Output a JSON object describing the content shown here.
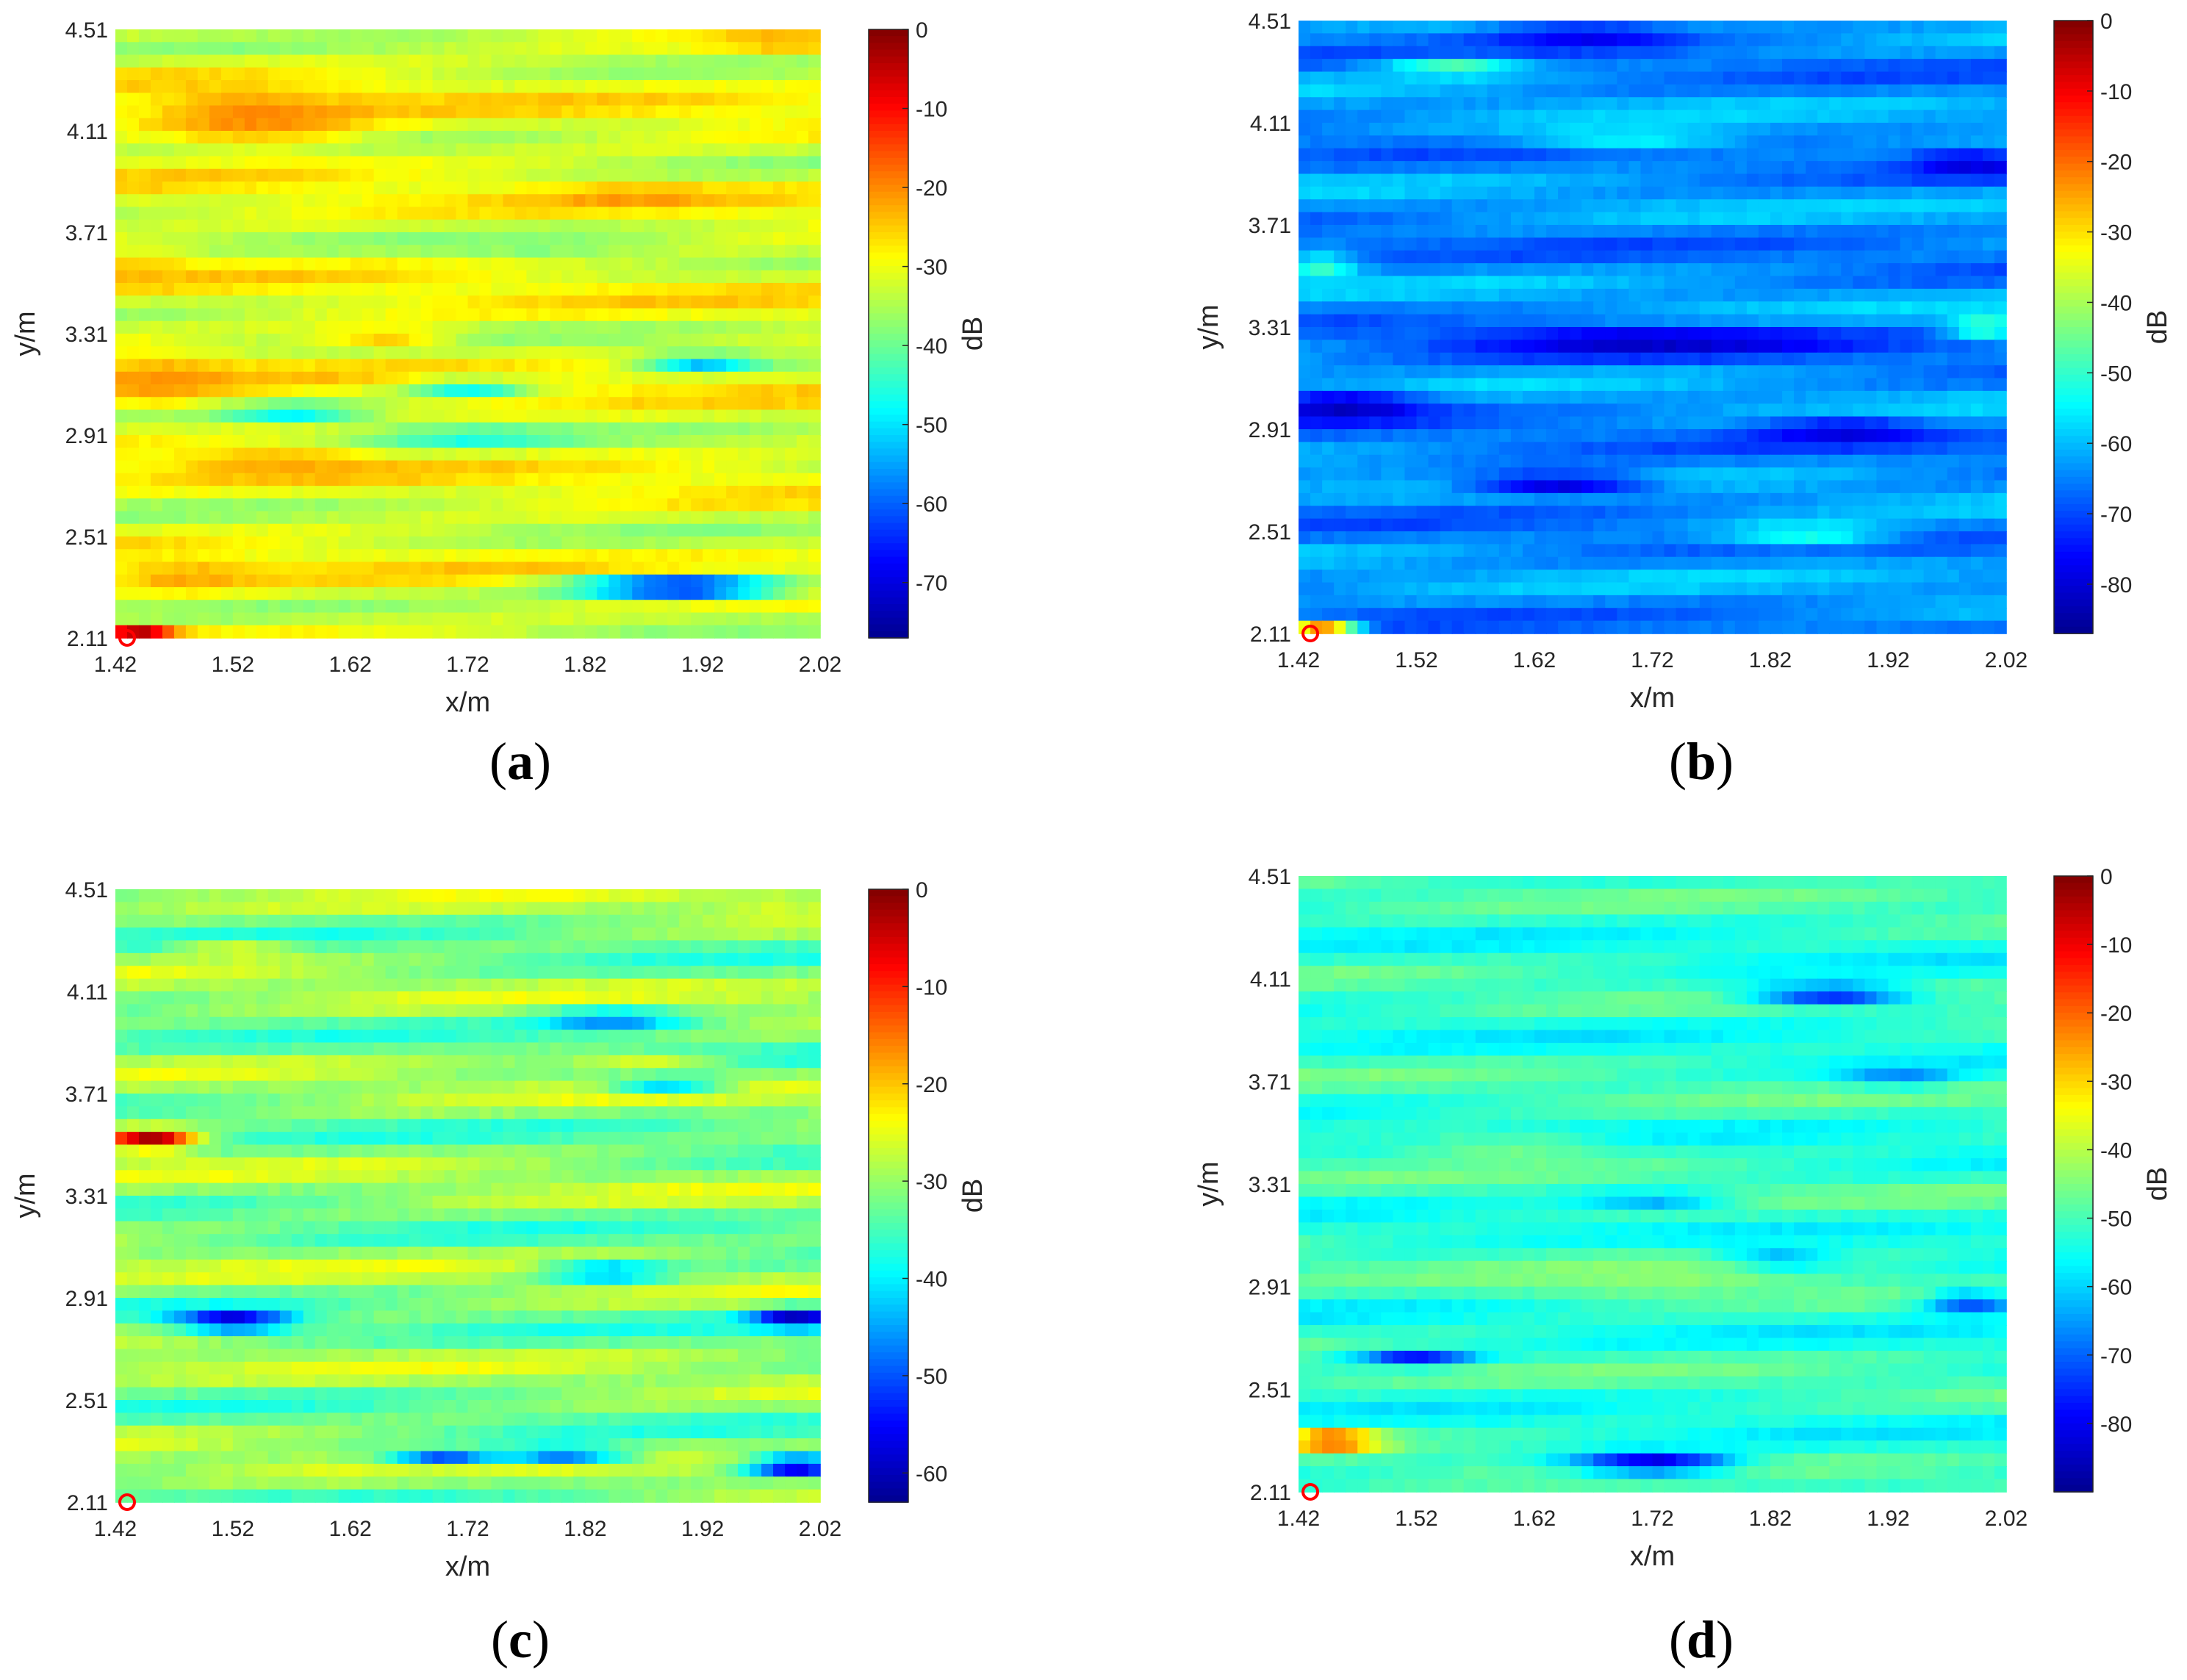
{
  "figure": {
    "label_open": "(",
    "label_close": ")"
  },
  "colormap": [
    "#00008f",
    "#0000ff",
    "#007fff",
    "#00ffff",
    "#7fff7f",
    "#ffff00",
    "#ff7f00",
    "#ff0000",
    "#7f0000"
  ],
  "chart_data": [
    {
      "type": "heatmap",
      "panel": "a",
      "xlabel": "x/m",
      "ylabel": "y/m",
      "xticks": [
        "1.42",
        "1.52",
        "1.62",
        "1.72",
        "1.82",
        "1.92",
        "2.02"
      ],
      "yticks": [
        "2.11",
        "2.51",
        "2.91",
        "3.31",
        "3.71",
        "4.11",
        "4.51"
      ],
      "xlim": [
        1.42,
        2.02
      ],
      "ylim": [
        2.11,
        4.51
      ],
      "colorbar": {
        "label": "dB",
        "range": [
          -77,
          0
        ],
        "ticks": [
          0,
          -10,
          -20,
          -30,
          -40,
          -50,
          -60,
          -70
        ]
      },
      "source_marker": {
        "x": 1.43,
        "y": 2.11
      },
      "background_db": -31,
      "features": [
        {
          "x": 1.54,
          "y": 4.16,
          "sx": 0.1,
          "sy": 0.12,
          "v": -20
        },
        {
          "x": 1.46,
          "y": 3.12,
          "sx": 0.07,
          "sy": 0.1,
          "v": -21
        },
        {
          "x": 1.86,
          "y": 3.85,
          "sx": 0.07,
          "sy": 0.04,
          "v": -21
        },
        {
          "x": 1.99,
          "y": 4.46,
          "sx": 0.06,
          "sy": 0.05,
          "v": -23
        },
        {
          "x": 1.44,
          "y": 3.55,
          "sx": 0.05,
          "sy": 0.07,
          "v": -24
        },
        {
          "x": 1.56,
          "y": 2.8,
          "sx": 0.08,
          "sy": 0.06,
          "v": -22
        },
        {
          "x": 1.48,
          "y": 2.35,
          "sx": 0.06,
          "sy": 0.06,
          "v": -22
        },
        {
          "x": 1.65,
          "y": 3.3,
          "sx": 0.06,
          "sy": 0.04,
          "v": -24
        },
        {
          "x": 1.44,
          "y": 2.13,
          "sx": 0.03,
          "sy": 0.03,
          "v": -3
        },
        {
          "x": 1.9,
          "y": 2.31,
          "sx": 0.09,
          "sy": 0.04,
          "v": -75
        },
        {
          "x": 1.92,
          "y": 3.2,
          "sx": 0.05,
          "sy": 0.03,
          "v": -58
        },
        {
          "x": 1.72,
          "y": 3.1,
          "sx": 0.05,
          "sy": 0.03,
          "v": -52
        },
        {
          "x": 1.57,
          "y": 3.0,
          "sx": 0.06,
          "sy": 0.03,
          "v": -52
        },
        {
          "x": 1.72,
          "y": 2.9,
          "sx": 0.08,
          "sy": 0.04,
          "v": -47
        },
        {
          "x": 1.78,
          "y": 3.65,
          "sx": 0.1,
          "sy": 0.05,
          "v": -38
        }
      ]
    },
    {
      "type": "heatmap",
      "panel": "b",
      "xlabel": "x/m",
      "ylabel": "y/m",
      "xticks": [
        "1.42",
        "1.52",
        "1.62",
        "1.72",
        "1.82",
        "1.92",
        "2.02"
      ],
      "yticks": [
        "2.11",
        "2.51",
        "2.91",
        "3.31",
        "3.71",
        "4.11",
        "4.51"
      ],
      "xlim": [
        1.42,
        2.02
      ],
      "ylim": [
        2.11,
        4.51
      ],
      "colorbar": {
        "label": "dB",
        "range": [
          -87,
          0
        ],
        "ticks": [
          0,
          -10,
          -20,
          -30,
          -40,
          -50,
          -60,
          -70,
          -80
        ]
      },
      "source_marker": {
        "x": 1.43,
        "y": 2.11
      },
      "background_db": -64,
      "features": [
        {
          "x": 1.72,
          "y": 3.25,
          "sx": 0.16,
          "sy": 0.06,
          "v": -82
        },
        {
          "x": 1.46,
          "y": 3.0,
          "sx": 0.07,
          "sy": 0.06,
          "v": -83
        },
        {
          "x": 1.64,
          "y": 2.7,
          "sx": 0.08,
          "sy": 0.04,
          "v": -82
        },
        {
          "x": 1.88,
          "y": 2.9,
          "sx": 0.07,
          "sy": 0.05,
          "v": -80
        },
        {
          "x": 1.99,
          "y": 3.95,
          "sx": 0.05,
          "sy": 0.05,
          "v": -80
        },
        {
          "x": 1.66,
          "y": 4.45,
          "sx": 0.08,
          "sy": 0.05,
          "v": -78
        },
        {
          "x": 1.44,
          "y": 2.13,
          "sx": 0.03,
          "sy": 0.03,
          "v": -22
        },
        {
          "x": 2.0,
          "y": 3.31,
          "sx": 0.03,
          "sy": 0.03,
          "v": -38
        },
        {
          "x": 1.55,
          "y": 4.33,
          "sx": 0.06,
          "sy": 0.04,
          "v": -48
        },
        {
          "x": 1.44,
          "y": 3.55,
          "sx": 0.03,
          "sy": 0.04,
          "v": -48
        },
        {
          "x": 1.85,
          "y": 2.5,
          "sx": 0.08,
          "sy": 0.05,
          "v": -52
        },
        {
          "x": 1.7,
          "y": 4.05,
          "sx": 0.1,
          "sy": 0.05,
          "v": -54
        }
      ]
    },
    {
      "type": "heatmap",
      "panel": "c",
      "xlabel": "x/m",
      "ylabel": "y/m",
      "xticks": [
        "1.42",
        "1.52",
        "1.62",
        "1.72",
        "1.82",
        "1.92",
        "2.02"
      ],
      "yticks": [
        "2.11",
        "2.51",
        "2.91",
        "3.31",
        "3.71",
        "4.11",
        "4.51"
      ],
      "xlim": [
        1.42,
        2.02
      ],
      "ylim": [
        2.11,
        4.51
      ],
      "colorbar": {
        "label": "dB",
        "range": [
          -63,
          0
        ],
        "ticks": [
          0,
          -10,
          -20,
          -30,
          -40,
          -50,
          -60
        ]
      },
      "source_marker": {
        "x": 1.43,
        "y": 2.11
      },
      "background_db": -31,
      "features": [
        {
          "x": 1.45,
          "y": 3.53,
          "sx": 0.04,
          "sy": 0.04,
          "v": -2
        },
        {
          "x": 1.52,
          "y": 2.82,
          "sx": 0.05,
          "sy": 0.04,
          "v": -60
        },
        {
          "x": 2.0,
          "y": 2.83,
          "sx": 0.04,
          "sy": 0.04,
          "v": -60
        },
        {
          "x": 2.0,
          "y": 2.25,
          "sx": 0.04,
          "sy": 0.04,
          "v": -60
        },
        {
          "x": 1.84,
          "y": 3.01,
          "sx": 0.05,
          "sy": 0.03,
          "v": -52
        },
        {
          "x": 1.84,
          "y": 4.0,
          "sx": 0.06,
          "sy": 0.04,
          "v": -48
        },
        {
          "x": 1.89,
          "y": 3.75,
          "sx": 0.05,
          "sy": 0.03,
          "v": -46
        },
        {
          "x": 1.8,
          "y": 2.3,
          "sx": 0.06,
          "sy": 0.03,
          "v": -52
        },
        {
          "x": 1.7,
          "y": 2.28,
          "sx": 0.05,
          "sy": 0.03,
          "v": -50
        },
        {
          "x": 1.52,
          "y": 4.27,
          "sx": 0.05,
          "sy": 0.03,
          "v": -24
        },
        {
          "x": 1.87,
          "y": 3.82,
          "sx": 0.07,
          "sy": 0.03,
          "v": -24
        },
        {
          "x": 1.98,
          "y": 4.45,
          "sx": 0.05,
          "sy": 0.04,
          "v": -26
        }
      ]
    },
    {
      "type": "heatmap",
      "panel": "d",
      "xlabel": "x/m",
      "ylabel": "y/m",
      "xticks": [
        "1.42",
        "1.52",
        "1.62",
        "1.72",
        "1.82",
        "1.92",
        "2.02"
      ],
      "yticks": [
        "2.11",
        "2.51",
        "2.91",
        "3.31",
        "3.71",
        "4.11",
        "4.51"
      ],
      "xlim": [
        1.42,
        2.02
      ],
      "ylim": [
        2.11,
        4.51
      ],
      "colorbar": {
        "label": "dB",
        "range": [
          -90,
          0
        ],
        "ticks": [
          0,
          -10,
          -20,
          -30,
          -40,
          -50,
          -60,
          -70,
          -80
        ]
      },
      "source_marker": {
        "x": 1.43,
        "y": 2.11
      },
      "background_db": -52,
      "features": [
        {
          "x": 1.45,
          "y": 2.31,
          "sx": 0.04,
          "sy": 0.04,
          "v": -12
        },
        {
          "x": 1.72,
          "y": 2.22,
          "sx": 0.07,
          "sy": 0.04,
          "v": -85
        },
        {
          "x": 1.82,
          "y": 3.01,
          "sx": 0.05,
          "sy": 0.03,
          "v": -85
        },
        {
          "x": 1.52,
          "y": 2.63,
          "sx": 0.05,
          "sy": 0.03,
          "v": -78
        },
        {
          "x": 1.87,
          "y": 4.05,
          "sx": 0.07,
          "sy": 0.04,
          "v": -78
        },
        {
          "x": 1.99,
          "y": 2.85,
          "sx": 0.04,
          "sy": 0.04,
          "v": -75
        },
        {
          "x": 1.93,
          "y": 3.72,
          "sx": 0.05,
          "sy": 0.03,
          "v": -70
        },
        {
          "x": 1.72,
          "y": 3.25,
          "sx": 0.06,
          "sy": 0.03,
          "v": -66
        },
        {
          "x": 1.72,
          "y": 2.95,
          "sx": 0.14,
          "sy": 0.1,
          "v": -44
        },
        {
          "x": 1.6,
          "y": 3.45,
          "sx": 0.1,
          "sy": 0.06,
          "v": -46
        }
      ]
    }
  ]
}
